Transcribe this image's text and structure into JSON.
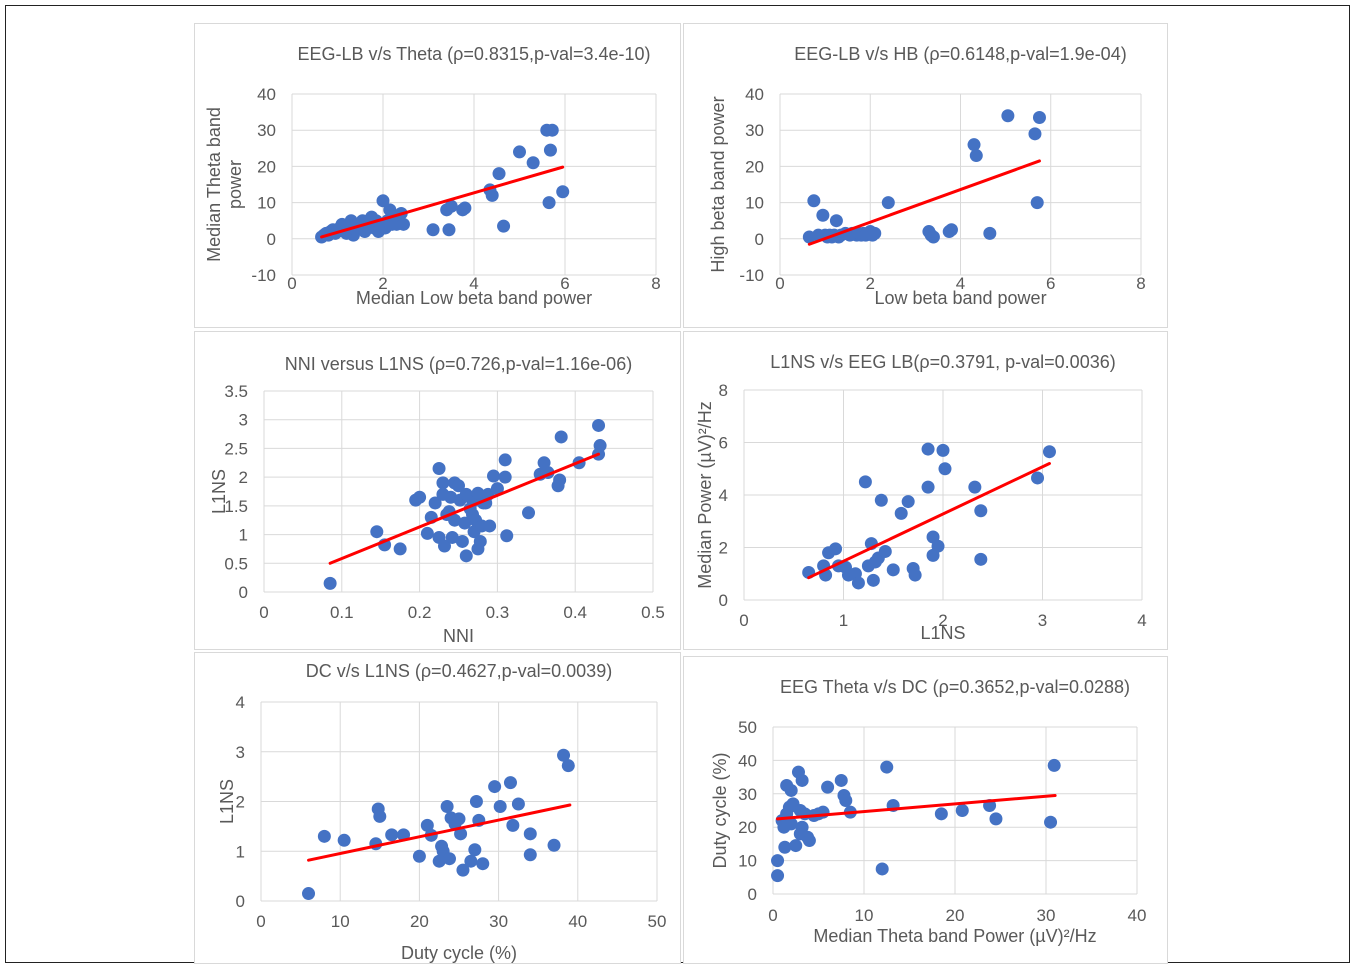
{
  "chart_data": [
    {
      "type": "scatter",
      "title": "EEG-LB v/s Theta (ρ=0.8315,p-val=3.4e-10)",
      "xlabel": "Median Low beta band power",
      "ylabel_lines": [
        "Median Theta band",
        "power"
      ],
      "xlim": [
        0,
        8
      ],
      "ylim": [
        -10,
        40
      ],
      "xticks": [
        "0",
        "2",
        "4",
        "6",
        "8"
      ],
      "yticks": [
        "-10",
        "0",
        "10",
        "20",
        "30",
        "40"
      ],
      "grid": true,
      "colors": {
        "points": "#4472C4",
        "trend": "#FF0000"
      },
      "trendline": [
        [
          0.65,
          0.5
        ],
        [
          5.95,
          19.8
        ]
      ],
      "points": [
        [
          0.65,
          0.5
        ],
        [
          0.7,
          1
        ],
        [
          0.75,
          1.5
        ],
        [
          0.8,
          1
        ],
        [
          0.85,
          2
        ],
        [
          0.9,
          2.5
        ],
        [
          0.95,
          1.5
        ],
        [
          1.0,
          2
        ],
        [
          1.05,
          3
        ],
        [
          1.1,
          4
        ],
        [
          1.15,
          2
        ],
        [
          1.2,
          1.5
        ],
        [
          1.25,
          3
        ],
        [
          1.3,
          5
        ],
        [
          1.35,
          1
        ],
        [
          1.4,
          2.5
        ],
        [
          1.45,
          4
        ],
        [
          1.5,
          3
        ],
        [
          1.55,
          5
        ],
        [
          1.6,
          2
        ],
        [
          1.65,
          3.5
        ],
        [
          1.7,
          4
        ],
        [
          1.75,
          6
        ],
        [
          1.8,
          3
        ],
        [
          1.85,
          5
        ],
        [
          1.9,
          2
        ],
        [
          1.95,
          4
        ],
        [
          2.0,
          10.5
        ],
        [
          2.05,
          3
        ],
        [
          2.1,
          5
        ],
        [
          2.15,
          8
        ],
        [
          2.2,
          4
        ],
        [
          2.25,
          6
        ],
        [
          2.3,
          4
        ],
        [
          2.4,
          7
        ],
        [
          2.45,
          4
        ],
        [
          3.1,
          2.5
        ],
        [
          3.4,
          8
        ],
        [
          3.45,
          2.5
        ],
        [
          3.5,
          9
        ],
        [
          3.75,
          8
        ],
        [
          3.8,
          8.5
        ],
        [
          4.35,
          13.5
        ],
        [
          4.4,
          12
        ],
        [
          4.55,
          18
        ],
        [
          4.65,
          3.5
        ],
        [
          5.0,
          24
        ],
        [
          5.3,
          21
        ],
        [
          5.6,
          30
        ],
        [
          5.65,
          10
        ],
        [
          5.68,
          24.5
        ],
        [
          5.72,
          30
        ],
        [
          5.95,
          13
        ]
      ]
    },
    {
      "type": "scatter",
      "title": "EEG-LB v/s HB (ρ=0.6148,p-val=1.9e-04)",
      "xlabel": "Low beta band power",
      "ylabel_lines": [
        "High beta band power"
      ],
      "xlim": [
        0,
        8
      ],
      "ylim": [
        -10,
        40
      ],
      "xticks": [
        "0",
        "2",
        "4",
        "6",
        "8"
      ],
      "yticks": [
        "-10",
        "0",
        "10",
        "20",
        "30",
        "40"
      ],
      "grid": true,
      "colors": {
        "points": "#4472C4",
        "trend": "#FF0000"
      },
      "trendline": [
        [
          0.65,
          -1.5
        ],
        [
          5.75,
          21.5
        ]
      ],
      "points": [
        [
          0.65,
          0.5
        ],
        [
          0.75,
          10.5
        ],
        [
          0.85,
          1
        ],
        [
          0.95,
          6.5
        ],
        [
          1.0,
          1
        ],
        [
          1.05,
          0.5
        ],
        [
          1.1,
          1
        ],
        [
          1.15,
          0.5
        ],
        [
          1.2,
          1
        ],
        [
          1.25,
          5
        ],
        [
          1.3,
          0.5
        ],
        [
          1.35,
          1
        ],
        [
          1.45,
          1.5
        ],
        [
          1.55,
          1
        ],
        [
          1.6,
          1.5
        ],
        [
          1.7,
          1
        ],
        [
          1.75,
          1.5
        ],
        [
          1.8,
          1
        ],
        [
          1.85,
          1.5
        ],
        [
          1.9,
          1
        ],
        [
          1.95,
          1.5
        ],
        [
          2.0,
          2
        ],
        [
          2.05,
          1
        ],
        [
          2.1,
          1.5
        ],
        [
          2.4,
          10
        ],
        [
          3.3,
          2
        ],
        [
          3.35,
          1
        ],
        [
          3.4,
          0.5
        ],
        [
          3.75,
          2
        ],
        [
          3.8,
          2.5
        ],
        [
          4.3,
          26
        ],
        [
          4.35,
          23
        ],
        [
          4.65,
          1.5
        ],
        [
          5.05,
          34
        ],
        [
          5.65,
          29
        ],
        [
          5.7,
          10
        ],
        [
          5.75,
          33.5
        ]
      ]
    },
    {
      "type": "scatter",
      "title": "NNI versus L1NS (ρ=0.726,p-val=1.16e-06)",
      "xlabel": "NNI",
      "ylabel_lines": [
        "L1NS"
      ],
      "xlim": [
        0,
        0.5
      ],
      "ylim": [
        0,
        3.5
      ],
      "xticks": [
        "0",
        "0.1",
        "0.2",
        "0.3",
        "0.4",
        "0.5"
      ],
      "yticks": [
        "0",
        "0.5",
        "1",
        "1.5",
        "2",
        "2.5",
        "3",
        "3.5"
      ],
      "grid": true,
      "colors": {
        "points": "#4472C4",
        "trend": "#FF0000"
      },
      "trendline": [
        [
          0.085,
          0.5
        ],
        [
          0.43,
          2.4
        ]
      ],
      "points": [
        [
          0.085,
          0.15
        ],
        [
          0.145,
          1.05
        ],
        [
          0.155,
          0.82
        ],
        [
          0.175,
          0.75
        ],
        [
          0.195,
          1.6
        ],
        [
          0.2,
          1.65
        ],
        [
          0.21,
          1.02
        ],
        [
          0.215,
          1.3
        ],
        [
          0.22,
          1.55
        ],
        [
          0.225,
          2.15
        ],
        [
          0.225,
          0.95
        ],
        [
          0.23,
          1.7
        ],
        [
          0.23,
          1.9
        ],
        [
          0.232,
          0.8
        ],
        [
          0.235,
          1.35
        ],
        [
          0.238,
          1.4
        ],
        [
          0.24,
          1.65
        ],
        [
          0.242,
          0.95
        ],
        [
          0.245,
          1.9
        ],
        [
          0.245,
          1.25
        ],
        [
          0.25,
          1.85
        ],
        [
          0.252,
          1.6
        ],
        [
          0.255,
          0.88
        ],
        [
          0.258,
          1.2
        ],
        [
          0.26,
          1.7
        ],
        [
          0.26,
          0.63
        ],
        [
          0.265,
          1.45
        ],
        [
          0.265,
          1.65
        ],
        [
          0.268,
          1.35
        ],
        [
          0.27,
          1.05
        ],
        [
          0.272,
          1.25
        ],
        [
          0.273,
          1.6
        ],
        [
          0.275,
          0.75
        ],
        [
          0.275,
          1.72
        ],
        [
          0.278,
          0.88
        ],
        [
          0.28,
          1.15
        ],
        [
          0.282,
          1.55
        ],
        [
          0.285,
          1.55
        ],
        [
          0.288,
          1.7
        ],
        [
          0.29,
          1.15
        ],
        [
          0.295,
          2.02
        ],
        [
          0.3,
          1.8
        ],
        [
          0.31,
          2.3
        ],
        [
          0.31,
          2.0
        ],
        [
          0.312,
          0.98
        ],
        [
          0.34,
          1.38
        ],
        [
          0.355,
          2.05
        ],
        [
          0.36,
          2.25
        ],
        [
          0.365,
          2.08
        ],
        [
          0.378,
          1.85
        ],
        [
          0.38,
          1.95
        ],
        [
          0.382,
          2.7
        ],
        [
          0.405,
          2.25
        ],
        [
          0.43,
          2.9
        ],
        [
          0.432,
          2.55
        ],
        [
          0.43,
          2.4
        ]
      ]
    },
    {
      "type": "scatter",
      "title": "L1NS v/s EEG LB(ρ=0.3791, p-val=0.0036)",
      "xlabel": "L1NS",
      "ylabel_lines": [
        "Median Power (µV)²/Hz"
      ],
      "xlim": [
        0,
        4
      ],
      "ylim": [
        0,
        8
      ],
      "xticks": [
        "0",
        "1",
        "2",
        "3",
        "4"
      ],
      "yticks": [
        "0",
        "2",
        "4",
        "6",
        "8"
      ],
      "grid": true,
      "colors": {
        "points": "#4472C4",
        "trend": "#FF0000"
      },
      "trendline": [
        [
          0.65,
          0.85
        ],
        [
          3.07,
          5.2
        ]
      ],
      "points": [
        [
          0.65,
          1.05
        ],
        [
          0.8,
          1.3
        ],
        [
          0.82,
          0.95
        ],
        [
          0.85,
          1.8
        ],
        [
          0.92,
          1.95
        ],
        [
          0.95,
          1.3
        ],
        [
          1.02,
          1.25
        ],
        [
          1.05,
          0.95
        ],
        [
          1.12,
          1.0
        ],
        [
          1.15,
          0.65
        ],
        [
          1.22,
          4.5
        ],
        [
          1.25,
          1.3
        ],
        [
          1.28,
          2.15
        ],
        [
          1.3,
          0.75
        ],
        [
          1.32,
          1.45
        ],
        [
          1.35,
          1.6
        ],
        [
          1.38,
          3.8
        ],
        [
          1.42,
          1.85
        ],
        [
          1.5,
          1.15
        ],
        [
          1.58,
          3.3
        ],
        [
          1.65,
          3.75
        ],
        [
          1.7,
          1.2
        ],
        [
          1.72,
          0.95
        ],
        [
          1.85,
          5.75
        ],
        [
          1.85,
          4.3
        ],
        [
          1.9,
          2.4
        ],
        [
          1.9,
          1.7
        ],
        [
          1.95,
          2.05
        ],
        [
          2.0,
          5.7
        ],
        [
          2.02,
          5.0
        ],
        [
          2.32,
          4.3
        ],
        [
          2.38,
          3.4
        ],
        [
          2.38,
          1.55
        ],
        [
          2.95,
          4.65
        ],
        [
          3.07,
          5.65
        ]
      ]
    },
    {
      "type": "scatter",
      "title": "DC v/s L1NS (ρ=0.4627,p-val=0.0039)",
      "xlabel": "Duty cycle (%)",
      "ylabel_lines": [
        "L1NS"
      ],
      "xlim": [
        0,
        50
      ],
      "ylim": [
        0,
        4
      ],
      "xticks": [
        "0",
        "10",
        "20",
        "30",
        "40",
        "50"
      ],
      "yticks": [
        "0",
        "1",
        "2",
        "3",
        "4"
      ],
      "grid": true,
      "colors": {
        "points": "#4472C4",
        "trend": "#FF0000"
      },
      "trendline": [
        [
          6,
          0.82
        ],
        [
          39,
          1.93
        ]
      ],
      "points": [
        [
          6,
          0.15
        ],
        [
          8,
          1.3
        ],
        [
          10.5,
          1.22
        ],
        [
          14.5,
          1.15
        ],
        [
          14.8,
          1.85
        ],
        [
          15,
          1.7
        ],
        [
          16.5,
          1.33
        ],
        [
          18,
          1.33
        ],
        [
          20,
          0.9
        ],
        [
          21,
          1.52
        ],
        [
          21.5,
          1.32
        ],
        [
          22.5,
          0.8
        ],
        [
          22.8,
          1.1
        ],
        [
          23,
          1.0
        ],
        [
          23.5,
          1.9
        ],
        [
          23.8,
          0.85
        ],
        [
          24,
          1.67
        ],
        [
          24.5,
          1.55
        ],
        [
          25,
          1.65
        ],
        [
          25.2,
          1.35
        ],
        [
          25.5,
          0.62
        ],
        [
          26.5,
          0.8
        ],
        [
          27,
          1.03
        ],
        [
          27.2,
          2.0
        ],
        [
          27.5,
          1.62
        ],
        [
          28,
          0.75
        ],
        [
          29.5,
          2.3
        ],
        [
          30.2,
          1.9
        ],
        [
          31.5,
          2.38
        ],
        [
          31.8,
          1.52
        ],
        [
          32.5,
          1.95
        ],
        [
          34,
          1.35
        ],
        [
          34,
          0.93
        ],
        [
          37,
          1.12
        ],
        [
          38.2,
          2.93
        ],
        [
          38.8,
          2.72
        ]
      ]
    },
    {
      "type": "scatter",
      "title": "EEG Theta v/s DC (ρ=0.3652,p-val=0.0288)",
      "xlabel": "Median Theta band Power (µV)²/Hz",
      "ylabel_lines": [
        "Duty cycle (%)"
      ],
      "xlim": [
        0,
        40
      ],
      "ylim": [
        0,
        50
      ],
      "xticks": [
        "0",
        "10",
        "20",
        "30",
        "40"
      ],
      "yticks": [
        "0",
        "10",
        "20",
        "30",
        "40",
        "50"
      ],
      "grid": true,
      "colors": {
        "points": "#4472C4",
        "trend": "#FF0000"
      },
      "trendline": [
        [
          0.5,
          22.5
        ],
        [
          31,
          29.5
        ]
      ],
      "points": [
        [
          0.5,
          10
        ],
        [
          0.5,
          5.5
        ],
        [
          1.0,
          22
        ],
        [
          1.2,
          20
        ],
        [
          1.3,
          14
        ],
        [
          1.5,
          24
        ],
        [
          1.5,
          32.5
        ],
        [
          1.8,
          26
        ],
        [
          2.0,
          31
        ],
        [
          2.0,
          21
        ],
        [
          2.2,
          27
        ],
        [
          2.5,
          14.5
        ],
        [
          2.8,
          36.5
        ],
        [
          3.0,
          25
        ],
        [
          3.0,
          18
        ],
        [
          3.2,
          20
        ],
        [
          3.2,
          34
        ],
        [
          3.5,
          24
        ],
        [
          3.8,
          17
        ],
        [
          4.0,
          16
        ],
        [
          4.5,
          23.5
        ],
        [
          5.0,
          24
        ],
        [
          5.5,
          24.5
        ],
        [
          6.0,
          32
        ],
        [
          7.5,
          34
        ],
        [
          7.8,
          29.5
        ],
        [
          8.0,
          28
        ],
        [
          8.5,
          24.5
        ],
        [
          12.0,
          7.5
        ],
        [
          12.5,
          38
        ],
        [
          13.2,
          26.5
        ],
        [
          18.5,
          24
        ],
        [
          20.8,
          25
        ],
        [
          23.8,
          26.5
        ],
        [
          24.5,
          22.5
        ],
        [
          30.5,
          21.5
        ],
        [
          30.9,
          38.5
        ]
      ]
    }
  ]
}
